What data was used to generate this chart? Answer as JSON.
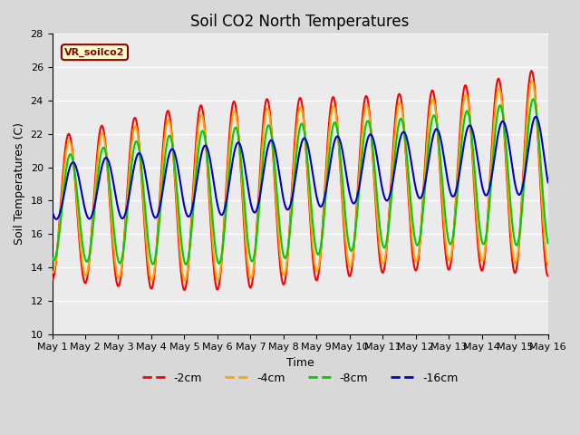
{
  "title": "Soil CO2 North Temperatures",
  "xlabel": "Time",
  "ylabel": "Soil Temperatures (C)",
  "ylim": [
    10,
    28
  ],
  "xlim": [
    0,
    15
  ],
  "x_tick_labels": [
    "May 1",
    "May 2",
    "May 3",
    "May 4",
    "May 5",
    "May 6",
    "May 7",
    "May 8",
    "May 9",
    "May 10",
    "May 11",
    "May 12",
    "May 13",
    "May 14",
    "May 15",
    "May 16"
  ],
  "annotation_text": "VR_soilco2",
  "annotation_box_color": "#ffffcc",
  "annotation_text_color": "#8b0000",
  "colors": {
    "-2cm": "#ff0000",
    "-4cm": "#ffa500",
    "-8cm": "#00cc00",
    "-16cm": "#0000cc"
  },
  "line_width": 1.5,
  "background_color": "#d8d8d8",
  "plot_bg_color": "#ebebeb",
  "grid_color": "#ffffff",
  "title_fontsize": 12,
  "label_fontsize": 9,
  "tick_fontsize": 8
}
